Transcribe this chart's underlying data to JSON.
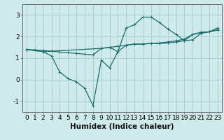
{
  "background_color": "#ceeaea",
  "grid_color": "#aacece",
  "line_color": "#1a6e6e",
  "xlabel": "Humidex (Indice chaleur)",
  "xlabel_fontsize": 7.5,
  "tick_fontsize": 6.5,
  "ylim": [
    -1.5,
    3.5
  ],
  "xlim": [
    -0.5,
    23.5
  ],
  "yticks": [
    -1,
    0,
    1,
    2,
    3
  ],
  "xticks": [
    0,
    1,
    2,
    3,
    4,
    5,
    6,
    7,
    8,
    9,
    10,
    11,
    12,
    13,
    14,
    15,
    16,
    17,
    18,
    19,
    20,
    21,
    22,
    23
  ],
  "curve1_x": [
    0,
    1,
    2,
    3,
    4,
    5,
    6,
    7,
    8,
    9,
    10,
    11,
    12,
    13,
    14,
    15,
    16,
    17,
    18,
    19,
    20,
    21,
    22,
    23
  ],
  "curve1_y": [
    1.4,
    1.38,
    1.35,
    1.32,
    1.28,
    1.25,
    1.22,
    1.18,
    1.15,
    1.45,
    1.5,
    1.55,
    1.6,
    1.65,
    1.65,
    1.68,
    1.7,
    1.75,
    1.8,
    1.88,
    2.1,
    2.2,
    2.22,
    2.3
  ],
  "curve2_x": [
    0,
    2,
    3,
    4,
    5,
    6,
    7,
    8,
    9,
    10,
    11,
    12,
    13,
    14,
    15,
    16,
    17,
    18,
    19,
    20,
    21,
    22,
    23
  ],
  "curve2_y": [
    1.4,
    1.3,
    1.1,
    0.35,
    0.05,
    -0.1,
    -0.4,
    -1.2,
    0.9,
    0.55,
    1.3,
    2.4,
    2.55,
    2.9,
    2.9,
    2.65,
    2.35,
    2.1,
    1.8,
    1.85,
    2.15,
    2.22,
    2.4
  ],
  "curve3_x": [
    0,
    2,
    9,
    10,
    11,
    12,
    13,
    14,
    15,
    16,
    17,
    18,
    19,
    20,
    21,
    22,
    23
  ],
  "curve3_y": [
    1.4,
    1.3,
    1.45,
    1.5,
    1.3,
    1.6,
    1.65,
    1.65,
    1.68,
    1.68,
    1.7,
    1.75,
    1.8,
    2.1,
    2.18,
    2.22,
    2.32
  ]
}
